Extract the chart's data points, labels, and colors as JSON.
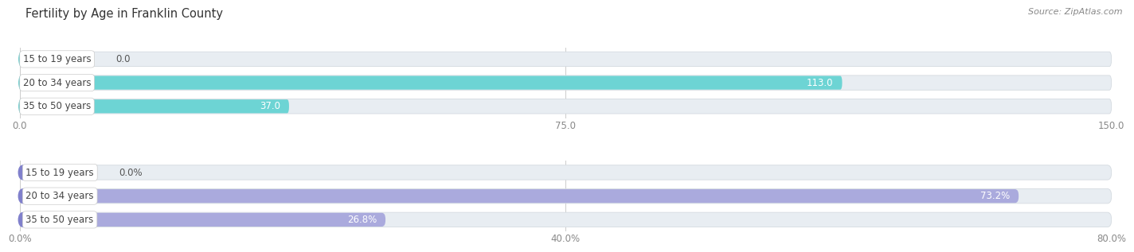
{
  "title": "Fertility by Age in Franklin County",
  "source": "Source: ZipAtlas.com",
  "top_chart": {
    "categories": [
      "15 to 19 years",
      "20 to 34 years",
      "35 to 50 years"
    ],
    "values": [
      0.0,
      113.0,
      37.0
    ],
    "xlim": [
      0,
      150
    ],
    "xticks": [
      0.0,
      75.0,
      150.0
    ],
    "bar_fill_color": "#3bbcbc",
    "bar_light_color": "#6dd4d4",
    "bar_bg_color": "#e8edf2",
    "bar_edge_color": "#d4dae0"
  },
  "bottom_chart": {
    "categories": [
      "15 to 19 years",
      "20 to 34 years",
      "35 to 50 years"
    ],
    "values": [
      0.0,
      73.2,
      26.8
    ],
    "xlim": [
      0,
      80
    ],
    "xticks": [
      0.0,
      40.0,
      80.0
    ],
    "xtick_labels": [
      "0.0%",
      "40.0%",
      "80.0%"
    ],
    "bar_fill_color": "#8080cc",
    "bar_light_color": "#aaaadd",
    "bar_bg_color": "#e8edf2",
    "bar_edge_color": "#d4dae0"
  },
  "label_fontsize": 8.5,
  "value_fontsize": 8.5,
  "title_fontsize": 10.5,
  "bar_height": 0.62,
  "fig_bg": "#ffffff",
  "label_box_bg": "#ffffff",
  "label_text_color": "#444444",
  "grid_color": "#cccccc",
  "tick_color": "#888888"
}
